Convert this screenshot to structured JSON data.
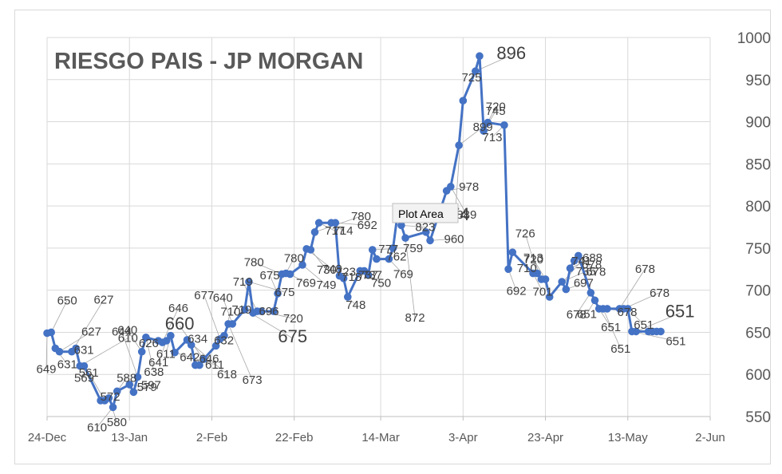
{
  "chart_data": {
    "type": "line",
    "title": "RIESGO PAIS - JP MORGAN",
    "tooltip": "Plot Area",
    "ylim": [
      550,
      1000
    ],
    "yticks": [
      "550",
      "600",
      "650",
      "700",
      "750",
      "800",
      "850",
      "900",
      "950",
      "1000"
    ],
    "xlim": [
      "2019-12-24",
      "2020-06-02"
    ],
    "xticks": [
      {
        "date": "2019-12-24",
        "label": "24-Dec"
      },
      {
        "date": "2020-01-13",
        "label": "13-Jan"
      },
      {
        "date": "2020-02-02",
        "label": "2-Feb"
      },
      {
        "date": "2020-02-22",
        "label": "22-Feb"
      },
      {
        "date": "2020-03-14",
        "label": "14-Mar"
      },
      {
        "date": "2020-04-03",
        "label": "3-Apr"
      },
      {
        "date": "2020-04-23",
        "label": "23-Apr"
      },
      {
        "date": "2020-05-13",
        "label": "13-May"
      },
      {
        "date": "2020-06-02",
        "label": "2-Jun"
      }
    ],
    "grid": "vertical and horizontal",
    "legend": "none",
    "series_color": "#4472c4",
    "series": [
      {
        "points": [
          {
            "x": "2019-12-24",
            "y": 649
          },
          {
            "x": "2019-12-25",
            "y": 650
          },
          {
            "x": "2019-12-26",
            "y": 631
          },
          {
            "x": "2019-12-27",
            "y": 627
          },
          {
            "x": "2019-12-30",
            "y": 627
          },
          {
            "x": "2019-12-31",
            "y": 631
          },
          {
            "x": "2020-01-01",
            "y": 610
          },
          {
            "x": "2020-01-02",
            "y": 610
          },
          {
            "x": "2020-01-06",
            "y": 569
          },
          {
            "x": "2020-01-07",
            "y": 569
          },
          {
            "x": "2020-01-08",
            "y": 572
          },
          {
            "x": "2020-01-09",
            "y": 561
          },
          {
            "x": "2020-01-10",
            "y": 580
          },
          {
            "x": "2020-01-13",
            "y": 588
          },
          {
            "x": "2020-01-14",
            "y": 579
          },
          {
            "x": "2020-01-15",
            "y": 597
          },
          {
            "x": "2020-01-16",
            "y": 627
          },
          {
            "x": "2020-01-17",
            "y": 644
          },
          {
            "x": "2020-01-20",
            "y": 640
          },
          {
            "x": "2020-01-21",
            "y": 638
          },
          {
            "x": "2020-01-22",
            "y": 640
          },
          {
            "x": "2020-01-23",
            "y": 646
          },
          {
            "x": "2020-01-24",
            "y": 626
          },
          {
            "x": "2020-01-27",
            "y": 641
          },
          {
            "x": "2020-01-28",
            "y": 635
          },
          {
            "x": "2020-01-29",
            "y": 611
          },
          {
            "x": "2020-01-30",
            "y": 611
          },
          {
            "x": "2020-01-31",
            "y": 618
          },
          {
            "x": "2020-02-03",
            "y": 634
          },
          {
            "x": "2020-02-04",
            "y": 642
          },
          {
            "x": "2020-02-05",
            "y": 646
          },
          {
            "x": "2020-02-06",
            "y": 660
          },
          {
            "x": "2020-02-07",
            "y": 660
          },
          {
            "x": "2020-02-10",
            "y": 677
          },
          {
            "x": "2020-02-11",
            "y": 710
          },
          {
            "x": "2020-02-12",
            "y": 673
          },
          {
            "x": "2020-02-13",
            "y": 675
          },
          {
            "x": "2020-02-14",
            "y": 675
          },
          {
            "x": "2020-02-17",
            "y": 675
          },
          {
            "x": "2020-02-18",
            "y": 696
          },
          {
            "x": "2020-02-19",
            "y": 719
          },
          {
            "x": "2020-02-20",
            "y": 720
          },
          {
            "x": "2020-02-21",
            "y": 719
          },
          {
            "x": "2020-02-24",
            "y": 730
          },
          {
            "x": "2020-02-25",
            "y": 749
          },
          {
            "x": "2020-02-26",
            "y": 748
          },
          {
            "x": "2020-02-27",
            "y": 769
          },
          {
            "x": "2020-02-28",
            "y": 780
          },
          {
            "x": "2020-03-02",
            "y": 780
          },
          {
            "x": "2020-03-03",
            "y": 780
          },
          {
            "x": "2020-03-04",
            "y": 717
          },
          {
            "x": "2020-03-05",
            "y": 714
          },
          {
            "x": "2020-03-06",
            "y": 692
          },
          {
            "x": "2020-03-09",
            "y": 723
          },
          {
            "x": "2020-03-10",
            "y": 723
          },
          {
            "x": "2020-03-11",
            "y": 718
          },
          {
            "x": "2020-03-12",
            "y": 748
          },
          {
            "x": "2020-03-13",
            "y": 737
          },
          {
            "x": "2020-03-16",
            "y": 737
          },
          {
            "x": "2020-03-17",
            "y": 750
          },
          {
            "x": "2020-03-18",
            "y": 787
          },
          {
            "x": "2020-03-19",
            "y": 777
          },
          {
            "x": "2020-03-20",
            "y": 762
          },
          {
            "x": "2020-03-25",
            "y": 769
          },
          {
            "x": "2020-03-26",
            "y": 759
          },
          {
            "x": "2020-03-30",
            "y": 818
          },
          {
            "x": "2020-03-31",
            "y": 823
          },
          {
            "x": "2020-04-02",
            "y": 872
          },
          {
            "x": "2020-04-03",
            "y": 925
          },
          {
            "x": "2020-04-06",
            "y": 960
          },
          {
            "x": "2020-04-07",
            "y": 978
          },
          {
            "x": "2020-04-08",
            "y": 889
          },
          {
            "x": "2020-04-09",
            "y": 899
          },
          {
            "x": "2020-04-13",
            "y": 896
          },
          {
            "x": "2020-04-14",
            "y": 725
          },
          {
            "x": "2020-04-15",
            "y": 745
          },
          {
            "x": "2020-04-20",
            "y": 720
          },
          {
            "x": "2020-04-21",
            "y": 720
          },
          {
            "x": "2020-04-22",
            "y": 713
          },
          {
            "x": "2020-04-23",
            "y": 713
          },
          {
            "x": "2020-04-24",
            "y": 692
          },
          {
            "x": "2020-04-27",
            "y": 710
          },
          {
            "x": "2020-04-28",
            "y": 701
          },
          {
            "x": "2020-04-29",
            "y": 726
          },
          {
            "x": "2020-04-30",
            "y": 735
          },
          {
            "x": "2020-05-01",
            "y": 741
          },
          {
            "x": "2020-05-04",
            "y": 697
          },
          {
            "x": "2020-05-05",
            "y": 688
          },
          {
            "x": "2020-05-06",
            "y": 678
          },
          {
            "x": "2020-05-07",
            "y": 678
          },
          {
            "x": "2020-05-08",
            "y": 678
          },
          {
            "x": "2020-05-11",
            "y": 678
          },
          {
            "x": "2020-05-12",
            "y": 678
          },
          {
            "x": "2020-05-13",
            "y": 678
          },
          {
            "x": "2020-05-14",
            "y": 651
          },
          {
            "x": "2020-05-15",
            "y": 651
          },
          {
            "x": "2020-05-18",
            "y": 651
          },
          {
            "x": "2020-05-19",
            "y": 651
          },
          {
            "x": "2020-05-20",
            "y": 651
          },
          {
            "x": "2020-05-21",
            "y": 651
          }
        ]
      }
    ],
    "data_labels": [
      {
        "text": "649",
        "size": 15,
        "dx": -1,
        "dy": 50
      },
      {
        "text": "650",
        "size": 15,
        "dx": 20,
        "dy": -35
      },
      {
        "text": "631",
        "size": 15,
        "dx": 15,
        "dy": 25
      },
      {
        "text": "627",
        "size": 15,
        "dx": 40,
        "dy": -20
      },
      {
        "text": "627",
        "size": 15,
        "dx": 40,
        "dy": -60
      },
      {
        "text": "631",
        "size": 15,
        "dx": 10,
        "dy": 7
      },
      {
        "text": "610",
        "size": 15,
        "dx": 60,
        "dy": -30
      },
      {
        "text": "569",
        "size": 15,
        "dx": 0,
        "dy": 20
      },
      {
        "text": "572",
        "size": 15,
        "dx": 12,
        "dy": 0
      },
      {
        "text": "561",
        "size": 15,
        "dx": -20,
        "dy": -30
      },
      {
        "text": "580",
        "size": 15,
        "dx": 10,
        "dy": 35
      },
      {
        "text": "610",
        "size": 15,
        "dx": -20,
        "dy": 30
      },
      {
        "text": "588",
        "size": 15,
        "dx": 12,
        "dy": -12
      },
      {
        "text": "579",
        "size": 15,
        "dx": 22,
        "dy": 8
      },
      {
        "text": "597",
        "size": 15,
        "dx": 22,
        "dy": -4
      },
      {
        "text": "644",
        "size": 15,
        "dx": -20,
        "dy": -52
      },
      {
        "text": "640",
        "size": 15,
        "dx": -18,
        "dy": -22
      },
      {
        "text": "638",
        "size": 15,
        "dx": 10,
        "dy": 48
      },
      {
        "text": "626",
        "size": 15,
        "dx": -12,
        "dy": 8
      },
      {
        "text": "646",
        "size": 15,
        "dx": 20,
        "dy": -38
      },
      {
        "text": "641",
        "size": 15,
        "dx": -10,
        "dy": 32
      },
      {
        "text": "611",
        "size": 15,
        "dx": -6,
        "dy": 28
      },
      {
        "text": "611",
        "size": 15,
        "dx": 50,
        "dy": 20
      },
      {
        "text": "618",
        "size": 15,
        "dx": 50,
        "dy": 48
      },
      {
        "text": "634",
        "size": 15,
        "dx": 8,
        "dy": -3
      },
      {
        "text": "642",
        "size": 15,
        "dx": -7,
        "dy": -5
      },
      {
        "text": "646",
        "size": 15,
        "dx": 12,
        "dy": -3
      },
      {
        "text": "660",
        "size": 22,
        "dx": -30,
        "dy": -37
      },
      {
        "text": "632",
        "size": 15,
        "dx": 10,
        "dy": -2
      },
      {
        "text": "677",
        "size": 15,
        "dx": -20,
        "dy": -50
      },
      {
        "text": "710",
        "size": 15,
        "dx": 8,
        "dy": -25
      },
      {
        "text": "673",
        "size": 15,
        "dx": 30,
        "dy": 75
      },
      {
        "text": "640",
        "size": 15,
        "dx": -12,
        "dy": -28
      },
      {
        "text": "675",
        "size": 22,
        "dx": 60,
        "dy": 41
      },
      {
        "text": "675",
        "size": 15,
        "dx": 45,
        "dy": 18
      },
      {
        "text": "696",
        "size": 15,
        "dx": 20,
        "dy": 3
      },
      {
        "text": "719",
        "size": 15,
        "dx": -18,
        "dy": -32
      },
      {
        "text": "720",
        "size": 15,
        "dx": 40,
        "dy": 14
      },
      {
        "text": "719",
        "size": 15,
        "dx": -40,
        "dy": 3
      },
      {
        "text": "675",
        "size": 15,
        "dx": -10,
        "dy": -18
      },
      {
        "text": "780",
        "size": 15,
        "dx": -35,
        "dy": -10
      },
      {
        "text": "780",
        "size": 15,
        "dx": 10,
        "dy": -14
      },
      {
        "text": "769",
        "size": 15,
        "dx": 20,
        "dy": 16
      },
      {
        "text": "749",
        "size": 15,
        "dx": 30,
        "dy": 30
      },
      {
        "text": "748",
        "size": 15,
        "dx": 32,
        "dy": 30
      },
      {
        "text": "730",
        "size": 15,
        "dx": 20,
        "dy": 30
      },
      {
        "text": "780",
        "size": 15,
        "dx": 58,
        "dy": -15
      },
      {
        "text": "717",
        "size": 15,
        "dx": 20,
        "dy": 15
      },
      {
        "text": "714",
        "size": 15,
        "dx": 15,
        "dy": 15
      },
      {
        "text": "692",
        "size": 15,
        "dx": 40,
        "dy": 8
      },
      {
        "text": "723",
        "size": 15,
        "dx": 8,
        "dy": 0
      },
      {
        "text": "718",
        "size": 15,
        "dx": 10,
        "dy": 3
      },
      {
        "text": "748",
        "size": 15,
        "dx": 10,
        "dy": 15
      },
      {
        "text": "737",
        "size": 15,
        "dx": 10,
        "dy": 10
      },
      {
        "text": "737",
        "size": 15,
        "dx": 10,
        "dy": 10
      },
      {
        "text": "750",
        "size": 15,
        "dx": 16,
        "dy": 15
      },
      {
        "text": "777",
        "size": 15,
        "dx": 20,
        "dy": 4
      },
      {
        "text": "762",
        "size": 15,
        "dx": 25,
        "dy": 2
      },
      {
        "text": "769",
        "size": 15,
        "dx": 18,
        "dy": 24
      },
      {
        "text": "759",
        "size": 15,
        "dx": 25,
        "dy": 5
      },
      {
        "text": "818",
        "size": 15,
        "dx": 20,
        "dy": 7
      },
      {
        "text": "823",
        "size": 15,
        "dx": 30,
        "dy": 7
      },
      {
        "text": "872",
        "size": 15,
        "dx": 12,
        "dy": 105
      },
      {
        "text": "925",
        "size": 22,
        "dx": -20,
        "dy": -18
      },
      {
        "text": "960",
        "size": 15,
        "dx": 30,
        "dy": 3
      },
      {
        "text": "978",
        "size": 15,
        "dx": 28,
        "dy": 0
      },
      {
        "text": "889",
        "size": 15,
        "dx": 20,
        "dy": 40
      },
      {
        "text": "899",
        "size": 15,
        "dx": 30,
        "dy": -18
      },
      {
        "text": "874",
        "size": 22,
        "dx": -10,
        "dy": 150
      },
      {
        "text": "896",
        "size": 22,
        "dx": 45,
        "dy": -15
      },
      {
        "text": "725",
        "size": 15,
        "dx": -10,
        "dy": 32
      },
      {
        "text": "745",
        "size": 15,
        "dx": 15,
        "dy": -20
      },
      {
        "text": "720",
        "size": 15,
        "dx": 10,
        "dy": -15
      },
      {
        "text": "713",
        "size": 15,
        "dx": -15,
        "dy": 20
      },
      {
        "text": "692",
        "size": 15,
        "dx": 10,
        "dy": 32
      },
      {
        "text": "710",
        "size": 15,
        "dx": 18,
        "dy": 25
      },
      {
        "text": "701",
        "size": 15,
        "dx": 12,
        "dy": 28
      },
      {
        "text": "726",
        "size": 15,
        "dx": -15,
        "dy": -45
      },
      {
        "text": "713",
        "size": 15,
        "dx": -10,
        "dy": -22
      },
      {
        "text": "720",
        "size": 15,
        "dx": -15,
        "dy": -20
      },
      {
        "text": "741",
        "size": 15,
        "dx": 40,
        "dy": -40
      },
      {
        "text": "735",
        "size": 15,
        "dx": 30,
        "dy": -8
      },
      {
        "text": "697",
        "size": 15,
        "dx": 22,
        "dy": -3
      },
      {
        "text": "688",
        "size": 15,
        "dx": 28,
        "dy": -8
      },
      {
        "text": "678",
        "size": 15,
        "dx": 22,
        "dy": 10
      },
      {
        "text": "678",
        "size": 15,
        "dx": 22,
        "dy": 25
      },
      {
        "text": "678",
        "size": 15,
        "dx": -18,
        "dy": 32
      },
      {
        "text": "651",
        "size": 15,
        "dx": -10,
        "dy": 22
      },
      {
        "text": "651",
        "size": 15,
        "dx": 15,
        "dy": 28
      },
      {
        "text": "651",
        "size": 15,
        "dx": 22,
        "dy": 55
      },
      {
        "text": "678",
        "size": 15,
        "dx": 25,
        "dy": 9
      },
      {
        "text": "678",
        "size": 15,
        "dx": 32,
        "dy": -45
      },
      {
        "text": "678",
        "size": 15,
        "dx": 45,
        "dy": -15
      },
      {
        "text": "651",
        "size": 15,
        "dx": 20,
        "dy": 25
      },
      {
        "text": "651",
        "size": 15,
        "dx": 55,
        "dy": 17
      },
      {
        "text": "651",
        "size": 22,
        "dx": 55,
        "dy": -18
      }
    ]
  }
}
